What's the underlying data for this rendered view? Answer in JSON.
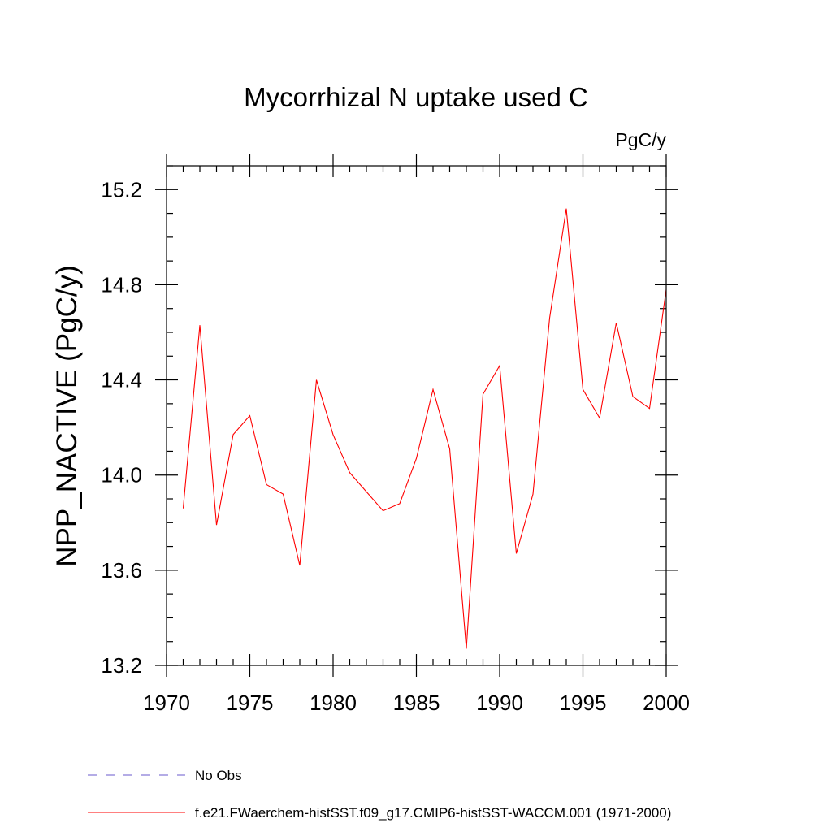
{
  "chart_data": {
    "type": "line",
    "title": "Mycorrhizal N uptake used C",
    "units": "PgC/y",
    "ylabel": "NPP_NACTIVE  (PgC/y)",
    "xlabel": "",
    "xlim": [
      1970,
      2000
    ],
    "ylim": [
      13.2,
      15.3
    ],
    "x_major_ticks": [
      1970,
      1975,
      1980,
      1985,
      1990,
      1995,
      2000
    ],
    "x_major_labels": [
      "1970",
      "1975",
      "1980",
      "1985",
      "1990",
      "1995",
      "2000"
    ],
    "y_major_ticks": [
      13.2,
      13.6,
      14.0,
      14.4,
      14.8,
      15.2
    ],
    "y_major_labels": [
      "13.2",
      "13.6",
      "14.0",
      "14.4",
      "14.8",
      "15.2"
    ],
    "x_minor_step": 1,
    "y_minor_step": 0.1,
    "grid": false,
    "series": [
      {
        "name": "f.e21.FWaerchem-histSST.f09_g17.CMIP6-histSST-WACCM.001 (1971-2000)",
        "color": "#ff0000",
        "style": "solid",
        "x": [
          1971,
          1972,
          1973,
          1974,
          1975,
          1976,
          1977,
          1978,
          1979,
          1980,
          1981,
          1982,
          1983,
          1984,
          1985,
          1986,
          1987,
          1988,
          1989,
          1990,
          1991,
          1992,
          1993,
          1994,
          1995,
          1996,
          1997,
          1998,
          1999,
          2000
        ],
        "values": [
          13.86,
          14.63,
          13.79,
          14.17,
          14.25,
          13.96,
          13.92,
          13.62,
          14.4,
          14.17,
          14.01,
          13.93,
          13.85,
          13.88,
          14.07,
          14.36,
          14.11,
          13.27,
          14.34,
          14.46,
          13.67,
          13.92,
          14.66,
          15.12,
          14.36,
          14.24,
          14.64,
          14.33,
          14.28,
          14.78
        ]
      }
    ],
    "legend": {
      "placement": "bottom-left",
      "entries": [
        {
          "label": "No Obs",
          "color": "#6a5acd",
          "style": "dashed"
        },
        {
          "label": "f.e21.FWaerchem-histSST.f09_g17.CMIP6-histSST-WACCM.001 (1971-2000)",
          "color": "#ff0000",
          "style": "solid"
        }
      ]
    }
  }
}
